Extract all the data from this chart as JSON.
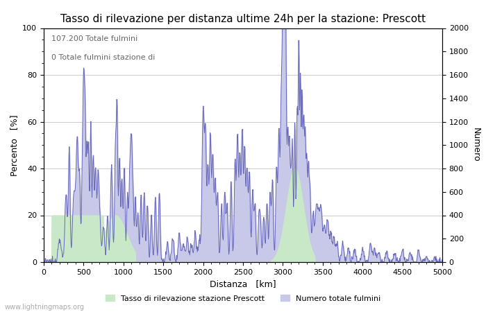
{
  "title": "Tasso di rilevazione per distanza ultime 24h per la stazione: Prescott",
  "xlabel": "Distanza   [km]",
  "ylabel_left": "Percento   [%]",
  "ylabel_right": "Numero",
  "annotation_line1": "107.200 Totale fulmini",
  "annotation_line2": "0 Totale fulmini stazione di",
  "watermark": "www.lightningmaps.org",
  "legend_label_green": "Tasso di rilevazione stazione Prescott",
  "legend_label_blue": "Numero totale fulmini",
  "xlim": [
    0,
    5000
  ],
  "ylim_left": [
    0,
    100
  ],
  "ylim_right": [
    0,
    2000
  ],
  "x_ticks": [
    0,
    500,
    1000,
    1500,
    2000,
    2500,
    3000,
    3500,
    4000,
    4500,
    5000
  ],
  "y_ticks_left": [
    0,
    20,
    40,
    60,
    80,
    100
  ],
  "y_ticks_right": [
    0,
    200,
    400,
    600,
    800,
    1000,
    1200,
    1400,
    1600,
    1800,
    2000
  ],
  "bg_color": "#ffffff",
  "plot_bg_color": "#ffffff",
  "grid_color": "#cccccc",
  "line_color": "#6666bb",
  "fill_blue_color": "#c8c8e8",
  "fill_green_color": "#c8e8c8",
  "title_fontsize": 11,
  "label_fontsize": 9,
  "tick_fontsize": 8,
  "annotation_fontsize": 8
}
